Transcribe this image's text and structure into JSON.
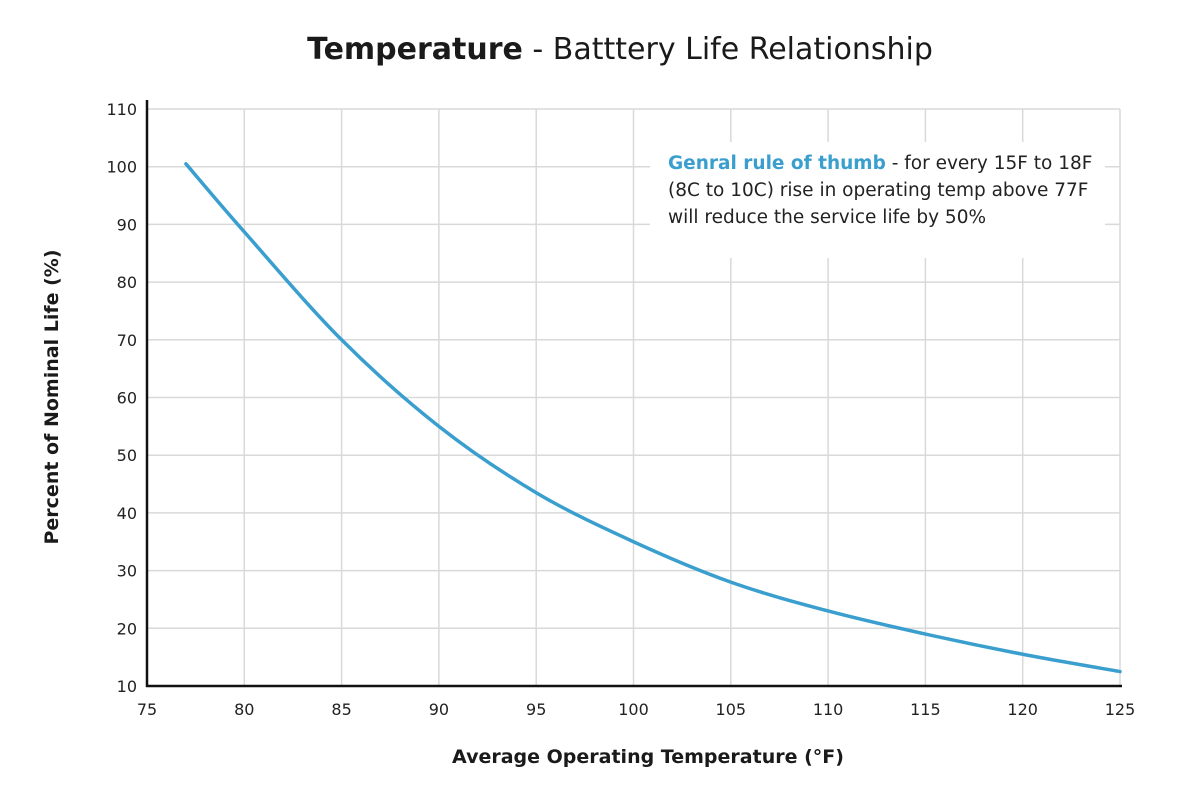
{
  "chart_data": {
    "type": "line",
    "title_bold": "Temperature",
    "title_rest": " - Batttery Life Relationship",
    "xlabel": "Average Operating Temperature (°F)",
    "ylabel": "Percent of Nominal Life (%)",
    "xlim": [
      75,
      125
    ],
    "ylim": [
      10,
      110
    ],
    "xticks": [
      75,
      80,
      85,
      90,
      95,
      100,
      105,
      110,
      115,
      120,
      125
    ],
    "yticks": [
      10,
      20,
      30,
      40,
      50,
      60,
      70,
      80,
      90,
      100,
      110
    ],
    "grid": true,
    "line_color": "#3a9fce",
    "x": [
      77,
      80,
      85,
      90,
      95,
      100,
      105,
      110,
      115,
      120,
      125
    ],
    "y": [
      100.5,
      88.7,
      70,
      55,
      43.5,
      35,
      28,
      23,
      19,
      15.5,
      12.5
    ],
    "annotation": {
      "highlight": "Genral rule of thumb",
      "text": " - for every 15F to 18F (8C to 10C) rise in operating temp above 77F will reduce the service life by 50%"
    }
  }
}
